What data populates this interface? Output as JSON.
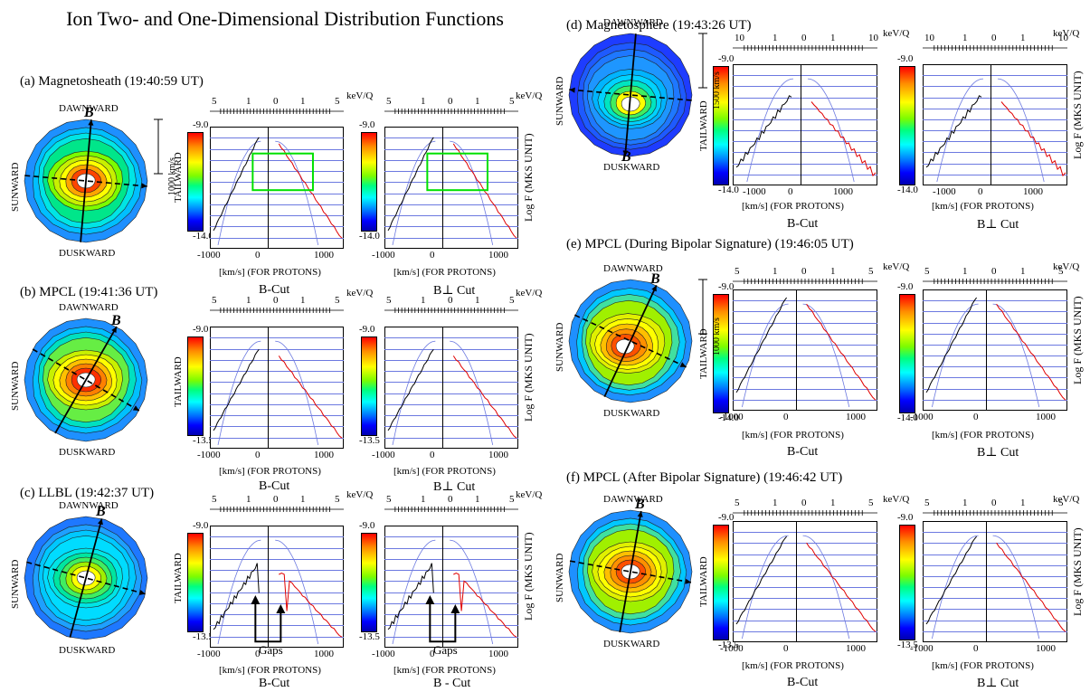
{
  "title": "Ion Two- and One-Dimensional Distribution Functions",
  "panels": [
    {
      "id": "a",
      "title": "(a)  Magnetosheath (19:40:59 UT)",
      "cb_top": "-9.0",
      "cb_bottom": "-14.0",
      "velbar": "1000 km/s",
      "b_side": "top"
    },
    {
      "id": "b",
      "title": "(b)  MPCL (19:41:36 UT)",
      "cb_top": "-9.0",
      "cb_bottom": "-13.5",
      "velbar": "",
      "b_side": "topright"
    },
    {
      "id": "c",
      "title": "(c)  LLBL (19:42:37 UT)",
      "cb_top": "-9.0",
      "cb_bottom": "-13.5",
      "velbar": "",
      "b_side": "bottomleft"
    },
    {
      "id": "d",
      "title": "(d)  Magnetosphere (19:43:26 UT)",
      "cb_top": "-9.0",
      "cb_bottom": "-14.0",
      "velbar": "1500 km/s",
      "b_side": "bottom"
    },
    {
      "id": "e",
      "title": "(e)  MPCL (During Bipolar Signature) (19:46:05 UT)",
      "cb_top": "-9.0",
      "cb_bottom": "-14.0",
      "velbar": "1000 km/s",
      "b_side": "topright"
    },
    {
      "id": "f",
      "title": "(f)  MPCL (After Bipolar Signature) (19:46:42 UT)",
      "cb_top": "-9.0",
      "cb_bottom": "-13.5",
      "velbar": "",
      "b_side": "top"
    }
  ],
  "labels": {
    "dawnward": "DAWNWARD",
    "duskward": "DUSKWARD",
    "sunward": "SUNWARD",
    "tailward": "TAILWARD",
    "kev": "keV/Q",
    "logf": "Log F  (MKS UNIT)",
    "xaxis": "[km/s] (FOR PROTONS)",
    "bcut": "B-Cut",
    "bperp": "B⊥ Cut",
    "gaps": "Gaps",
    "b": "B"
  },
  "energy_ticks_std": [
    "5",
    "1",
    "0",
    "1",
    "5"
  ],
  "energy_ticks_d": [
    "10",
    "1",
    "0",
    "1",
    "10"
  ],
  "vel_ticks_std": [
    "-1000",
    "0",
    "1000"
  ],
  "vel_ticks_d": [
    "-1000",
    "0",
    "1000"
  ],
  "chart_data": [
    {
      "type": "line",
      "panel": "a",
      "cut": "B-Cut",
      "xlim": [
        -1000,
        1300
      ],
      "ylim": [
        -14.0,
        -9.0
      ],
      "xlabel": "[km/s] (FOR PROTONS)"
    },
    {
      "type": "line",
      "panel": "a",
      "cut": "B⊥ Cut",
      "xlim": [
        -1000,
        1300
      ],
      "ylim": [
        -14.0,
        -9.0
      ],
      "xlabel": "[km/s] (FOR PROTONS)"
    },
    {
      "type": "line",
      "panel": "b",
      "cut": "B-Cut",
      "xlim": [
        -1000,
        1300
      ],
      "ylim": [
        -13.5,
        -9.0
      ],
      "xlabel": "[km/s] (FOR PROTONS)"
    },
    {
      "type": "line",
      "panel": "b",
      "cut": "B⊥ Cut",
      "xlim": [
        -1000,
        1300
      ],
      "ylim": [
        -13.5,
        -9.0
      ],
      "xlabel": "[km/s] (FOR PROTONS)"
    },
    {
      "type": "line",
      "panel": "c",
      "cut": "B-Cut",
      "xlim": [
        -1000,
        1300
      ],
      "ylim": [
        -13.5,
        -9.0
      ],
      "xlabel": "[km/s] (FOR PROTONS)"
    },
    {
      "type": "line",
      "panel": "c",
      "cut": "B - Cut",
      "xlim": [
        -1000,
        1300
      ],
      "ylim": [
        -13.5,
        -9.0
      ],
      "xlabel": "[km/s] (FOR PROTONS)"
    },
    {
      "type": "line",
      "panel": "d",
      "cut": "B-Cut",
      "xlim": [
        -1500,
        1700
      ],
      "ylim": [
        -14.0,
        -9.0
      ],
      "xlabel": "[km/s] (FOR PROTONS)"
    },
    {
      "type": "line",
      "panel": "d",
      "cut": "B⊥ Cut",
      "xlim": [
        -1500,
        1700
      ],
      "ylim": [
        -14.0,
        -9.0
      ],
      "xlabel": "[km/s] (FOR PROTONS)"
    },
    {
      "type": "line",
      "panel": "e",
      "cut": "B-Cut",
      "xlim": [
        -1000,
        1300
      ],
      "ylim": [
        -14.0,
        -9.0
      ],
      "xlabel": "[km/s] (FOR PROTONS)"
    },
    {
      "type": "line",
      "panel": "e",
      "cut": "B⊥ Cut",
      "xlim": [
        -1000,
        1300
      ],
      "ylim": [
        -14.0,
        -9.0
      ],
      "xlabel": "[km/s] (FOR PROTONS)"
    },
    {
      "type": "line",
      "panel": "f",
      "cut": "B-Cut",
      "xlim": [
        -1000,
        1300
      ],
      "ylim": [
        -13.5,
        -9.0
      ],
      "xlabel": "[km/s] (FOR PROTONS)"
    },
    {
      "type": "line",
      "panel": "f",
      "cut": "B⊥ Cut",
      "xlim": [
        -1000,
        1300
      ],
      "ylim": [
        -13.5,
        -9.0
      ],
      "xlabel": "[km/s] (FOR PROTONS)"
    }
  ]
}
